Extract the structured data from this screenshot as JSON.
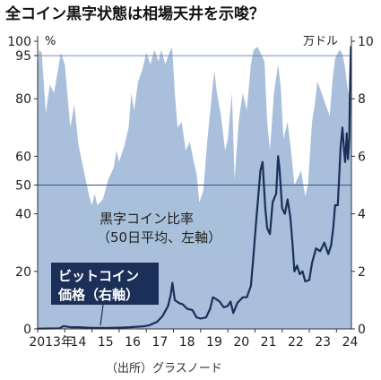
{
  "title": "全コイン黒字状態は相場天井を示唆？",
  "source": "（出所）グラスノード",
  "chart_data": {
    "type": "area+line",
    "left_unit": "%",
    "right_unit": "万ドル",
    "left_ticks": [
      "100",
      "95",
      "80",
      "60",
      "50",
      "40",
      "20",
      "0"
    ],
    "left_tick_values": [
      100,
      95,
      80,
      60,
      50,
      40,
      20,
      0
    ],
    "right_ticks": [
      "10",
      "8",
      "6",
      "4",
      "2",
      "0"
    ],
    "right_tick_values": [
      10,
      8,
      6,
      4,
      2,
      0
    ],
    "x_labels": [
      "2013年",
      "14",
      "15",
      "16",
      "17",
      "18",
      "19",
      "20",
      "21",
      "22",
      "23",
      "24"
    ],
    "x_label_years": [
      2013,
      2014,
      2015,
      2016,
      2017,
      2018,
      2019,
      2020,
      2021,
      2022,
      2023,
      2024
    ],
    "ylim_left": [
      0,
      100
    ],
    "ylim_right": [
      0,
      10
    ],
    "xlim": [
      2013.0,
      2024.55
    ],
    "reference_lines": [
      95,
      50
    ],
    "series": [
      {
        "name": "黒字コイン比率（50日平均、左軸）",
        "label_lines": [
          "黒字コイン比率",
          "（50日平均、左軸）"
        ],
        "axis": "left",
        "color": "#a9bfdb",
        "points": [
          [
            2013.0,
            90
          ],
          [
            2013.05,
            97
          ],
          [
            2013.15,
            96
          ],
          [
            2013.3,
            75
          ],
          [
            2013.45,
            85
          ],
          [
            2013.6,
            82
          ],
          [
            2013.75,
            90
          ],
          [
            2013.85,
            96
          ],
          [
            2014.0,
            92
          ],
          [
            2014.2,
            70
          ],
          [
            2014.35,
            78
          ],
          [
            2014.5,
            64
          ],
          [
            2014.7,
            55
          ],
          [
            2014.9,
            46
          ],
          [
            2015.0,
            43
          ],
          [
            2015.1,
            47
          ],
          [
            2015.2,
            43
          ],
          [
            2015.4,
            45
          ],
          [
            2015.6,
            52
          ],
          [
            2015.8,
            56
          ],
          [
            2015.9,
            62
          ],
          [
            2016.0,
            58
          ],
          [
            2016.2,
            64
          ],
          [
            2016.35,
            70
          ],
          [
            2016.45,
            82
          ],
          [
            2016.55,
            76
          ],
          [
            2016.7,
            86
          ],
          [
            2016.85,
            90
          ],
          [
            2017.0,
            96
          ],
          [
            2017.15,
            92
          ],
          [
            2017.3,
            97
          ],
          [
            2017.45,
            93
          ],
          [
            2017.55,
            97
          ],
          [
            2017.7,
            92
          ],
          [
            2017.85,
            96
          ],
          [
            2017.95,
            98
          ],
          [
            2018.05,
            82
          ],
          [
            2018.15,
            70
          ],
          [
            2018.3,
            72
          ],
          [
            2018.45,
            62
          ],
          [
            2018.6,
            65
          ],
          [
            2018.75,
            58
          ],
          [
            2018.85,
            54
          ],
          [
            2018.95,
            44
          ],
          [
            2019.1,
            48
          ],
          [
            2019.25,
            66
          ],
          [
            2019.4,
            80
          ],
          [
            2019.5,
            90
          ],
          [
            2019.6,
            82
          ],
          [
            2019.75,
            74
          ],
          [
            2019.9,
            62
          ],
          [
            2020.0,
            66
          ],
          [
            2020.15,
            82
          ],
          [
            2020.25,
            52
          ],
          [
            2020.4,
            72
          ],
          [
            2020.55,
            82
          ],
          [
            2020.7,
            76
          ],
          [
            2020.85,
            92
          ],
          [
            2020.95,
            97
          ],
          [
            2021.1,
            98
          ],
          [
            2021.2,
            96
          ],
          [
            2021.35,
            93
          ],
          [
            2021.45,
            72
          ],
          [
            2021.55,
            62
          ],
          [
            2021.7,
            82
          ],
          [
            2021.85,
            92
          ],
          [
            2021.95,
            84
          ],
          [
            2022.05,
            66
          ],
          [
            2022.2,
            72
          ],
          [
            2022.35,
            60
          ],
          [
            2022.45,
            50
          ],
          [
            2022.55,
            52
          ],
          [
            2022.7,
            55
          ],
          [
            2022.85,
            46
          ],
          [
            2022.95,
            50
          ],
          [
            2023.1,
            72
          ],
          [
            2023.2,
            78
          ],
          [
            2023.3,
            86
          ],
          [
            2023.45,
            82
          ],
          [
            2023.6,
            78
          ],
          [
            2023.75,
            74
          ],
          [
            2023.85,
            86
          ],
          [
            2023.95,
            94
          ],
          [
            2024.1,
            97
          ],
          [
            2024.2,
            96
          ],
          [
            2024.3,
            92
          ],
          [
            2024.4,
            84
          ],
          [
            2024.5,
            80
          ],
          [
            2024.55,
            82
          ]
        ]
      },
      {
        "name": "ビットコイン価格（右軸）",
        "label_lines": [
          "ビットコイン",
          "価格（右軸）"
        ],
        "axis": "right",
        "color": "#1b2f59",
        "points": [
          [
            2013.0,
            0.01
          ],
          [
            2013.8,
            0.02
          ],
          [
            2013.95,
            0.1
          ],
          [
            2014.2,
            0.06
          ],
          [
            2014.5,
            0.06
          ],
          [
            2014.9,
            0.04
          ],
          [
            2015.5,
            0.03
          ],
          [
            2015.9,
            0.04
          ],
          [
            2016.4,
            0.06
          ],
          [
            2016.9,
            0.09
          ],
          [
            2017.1,
            0.12
          ],
          [
            2017.4,
            0.25
          ],
          [
            2017.6,
            0.45
          ],
          [
            2017.8,
            0.8
          ],
          [
            2017.9,
            1.2
          ],
          [
            2017.96,
            1.6
          ],
          [
            2018.05,
            1.0
          ],
          [
            2018.2,
            0.9
          ],
          [
            2018.35,
            0.85
          ],
          [
            2018.5,
            0.7
          ],
          [
            2018.7,
            0.65
          ],
          [
            2018.85,
            0.4
          ],
          [
            2019.0,
            0.36
          ],
          [
            2019.2,
            0.4
          ],
          [
            2019.35,
            0.7
          ],
          [
            2019.45,
            1.1
          ],
          [
            2019.55,
            1.05
          ],
          [
            2019.7,
            0.95
          ],
          [
            2019.85,
            0.75
          ],
          [
            2020.0,
            0.8
          ],
          [
            2020.1,
            0.95
          ],
          [
            2020.2,
            0.55
          ],
          [
            2020.35,
            0.9
          ],
          [
            2020.55,
            1.1
          ],
          [
            2020.7,
            1.1
          ],
          [
            2020.85,
            1.5
          ],
          [
            2020.95,
            2.6
          ],
          [
            2021.05,
            3.8
          ],
          [
            2021.2,
            5.5
          ],
          [
            2021.28,
            5.8
          ],
          [
            2021.38,
            4.2
          ],
          [
            2021.45,
            3.5
          ],
          [
            2021.55,
            3.3
          ],
          [
            2021.65,
            4.4
          ],
          [
            2021.78,
            4.7
          ],
          [
            2021.85,
            6.0
          ],
          [
            2021.9,
            5.6
          ],
          [
            2022.0,
            4.2
          ],
          [
            2022.1,
            4.0
          ],
          [
            2022.2,
            4.5
          ],
          [
            2022.3,
            3.9
          ],
          [
            2022.38,
            3.0
          ],
          [
            2022.45,
            2.0
          ],
          [
            2022.55,
            2.2
          ],
          [
            2022.65,
            1.9
          ],
          [
            2022.75,
            2.0
          ],
          [
            2022.85,
            1.65
          ],
          [
            2023.0,
            1.7
          ],
          [
            2023.1,
            2.3
          ],
          [
            2023.25,
            2.8
          ],
          [
            2023.4,
            2.7
          ],
          [
            2023.55,
            3.0
          ],
          [
            2023.7,
            2.6
          ],
          [
            2023.8,
            2.9
          ],
          [
            2023.88,
            3.5
          ],
          [
            2023.95,
            4.3
          ],
          [
            2024.05,
            4.3
          ],
          [
            2024.15,
            6.3
          ],
          [
            2024.22,
            7.0
          ],
          [
            2024.28,
            6.2
          ],
          [
            2024.32,
            5.8
          ],
          [
            2024.38,
            6.8
          ],
          [
            2024.42,
            5.9
          ],
          [
            2024.47,
            6.6
          ],
          [
            2024.5,
            8.5
          ],
          [
            2024.53,
            9.8
          ]
        ]
      }
    ]
  }
}
